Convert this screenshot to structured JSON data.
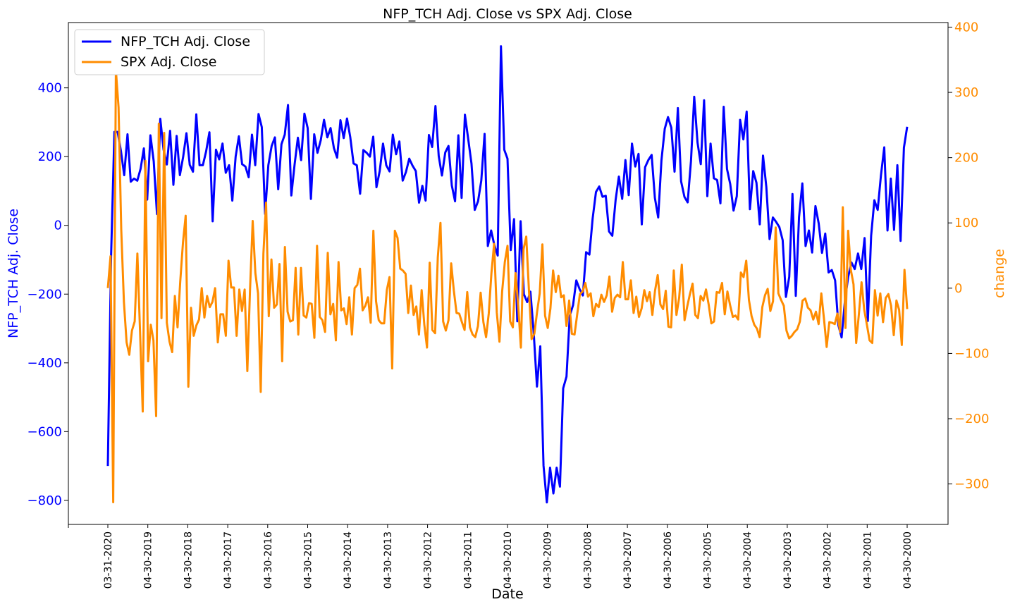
{
  "chart_data": {
    "type": "line",
    "title": "NFP_TCH Adj. Close vs SPX Adj. Close",
    "xlabel": "Date",
    "ylabel_left": "NFP_TCH Adj. Close",
    "ylabel_right": "change",
    "x_tick_labels": [
      "03-31-2020",
      "04-30-2019",
      "04-30-2018",
      "04-30-2017",
      "04-30-2016",
      "04-30-2015",
      "04-30-2014",
      "04-30-2013",
      "04-30-2012",
      "04-30-2011",
      "04-30-2010",
      "04-30-2009",
      "04-30-2008",
      "04-30-2007",
      "04-30-2006",
      "04-30-2005",
      "04-30-2004",
      "04-30-2003",
      "04-30-2002",
      "04-30-2001",
      "04-30-2000"
    ],
    "ylim_left": [
      -870,
      590
    ],
    "ylim_right": [
      -362,
      407
    ],
    "yticks_left": [
      -800,
      -600,
      -400,
      -200,
      0,
      200,
      400
    ],
    "yticks_right": [
      -300,
      -200,
      -100,
      0,
      100,
      200,
      300,
      400
    ],
    "legend": "top-left",
    "grid": false,
    "colors": {
      "nfp": "#0000ff",
      "spx": "#ff8c00"
    },
    "series": [
      {
        "name": "NFP_TCH Adj. Close",
        "axis": "left",
        "values": [
          -700,
          -90,
          272,
          272,
          216,
          146,
          265,
          127,
          136,
          130,
          165,
          224,
          75,
          262,
          186,
          33,
          310,
          221,
          177,
          275,
          118,
          260,
          146,
          200,
          268,
          176,
          156,
          323,
          175,
          175,
          215,
          271,
          12,
          220,
          192,
          238,
          153,
          175,
          72,
          200,
          259,
          178,
          171,
          140,
          264,
          175,
          324,
          286,
          33,
          175,
          231,
          256,
          105,
          236,
          264,
          350,
          87,
          176,
          255,
          190,
          325,
          283,
          77,
          265,
          211,
          248,
          307,
          256,
          283,
          225,
          197,
          306,
          254,
          311,
          257,
          180,
          175,
          92,
          219,
          211,
          200,
          258,
          111,
          158,
          238,
          175,
          157,
          264,
          207,
          244,
          130,
          155,
          194,
          174,
          158,
          66,
          115,
          72,
          263,
          228,
          347,
          202,
          145,
          212,
          231,
          116,
          70,
          262,
          80,
          322,
          252,
          180,
          45,
          70,
          130,
          266,
          -60,
          -15,
          -58,
          -88,
          521,
          220,
          194,
          -72,
          18,
          -279,
          12,
          -200,
          -223,
          -193,
          -313,
          -469,
          -352,
          -699,
          -806,
          -705,
          -780,
          -705,
          -760,
          -474,
          -440,
          -263,
          -232,
          -160,
          -185,
          -204,
          -78,
          -85,
          20,
          97,
          113,
          83,
          86,
          -18,
          -30,
          74,
          142,
          77,
          190,
          88,
          238,
          171,
          208,
          3,
          169,
          190,
          205,
          80,
          23,
          189,
          281,
          315,
          284,
          156,
          341,
          128,
          83,
          67,
          187,
          374,
          241,
          178,
          364,
          85,
          238,
          137,
          132,
          64,
          345,
          164,
          120,
          43,
          85,
          307,
          250,
          331,
          47,
          158,
          124,
          3,
          203,
          112,
          -40,
          23,
          10,
          -5,
          -43,
          -208,
          -150,
          91,
          -205,
          24,
          122,
          -60,
          -15,
          -79,
          56,
          6,
          -80,
          -24,
          -137,
          -130,
          -160,
          -290,
          -326,
          -220,
          -150,
          -108,
          -127,
          -82,
          -127,
          -37,
          -278,
          -30,
          73,
          45,
          145,
          227,
          -15,
          136,
          -13,
          175,
          -45,
          226,
          287
        ]
      },
      {
        "name": "SPX Adj. Close",
        "axis": "left",
        "values": [
          -180,
          -110,
          -805,
          520,
          250,
          -80,
          -185,
          -340,
          -370,
          -305,
          -280,
          -75,
          -320,
          -540,
          -115,
          -395,
          -275,
          -335,
          -555,
          -90,
          -270,
          -15,
          -190,
          -340,
          -365,
          -205,
          -290,
          -225,
          -40,
          10,
          -455,
          -230,
          -310,
          -285,
          -265,
          -185,
          -250,
          -200,
          -230,
          -210,
          -180,
          -340,
          -255,
          -255,
          -310,
          -100,
          -180,
          -180,
          -310,
          -185,
          -240,
          -180,
          -425,
          -190,
          0,
          -115,
          -185,
          -485,
          -80,
          10,
          -255,
          -95,
          -220,
          -210,
          -110,
          -390,
          -60,
          -170,
          -270,
          -260,
          -125,
          -310,
          -125,
          -245,
          -250,
          -205,
          -210,
          -325,
          -55,
          -260,
          -270,
          -305,
          -80,
          -240,
          -210,
          -330,
          -120,
          -245,
          -240,
          -285,
          -210,
          -310,
          -195,
          -180,
          -125,
          -245,
          -230,
          -210,
          -280,
          -165,
          -25,
          -150,
          -280,
          -290,
          -290,
          -200,
          -160,
          -410,
          -15,
          -35,
          -125,
          -130,
          -140,
          -250,
          -180,
          -255,
          -230,
          -310,
          -200,
          -290,
          -330,
          -120,
          -265,
          -315,
          -120,
          -50,
          -215,
          -325,
          -290,
          -100,
          -165,
          -240,
          -315,
          -190,
          -250,
          -245,
          -300,
          -220,
          -330,
          -310,
          -215,
          -265,
          -320,
          -285,
          -5,
          -15,
          -215,
          -315,
          -200,
          -120,
          -160,
          -240,
          -100,
          -335,
          -195,
          -50,
          -305,
          -250,
          -100,
          -205,
          -275,
          -130,
          -80,
          -170,
          -240,
          -310,
          -210,
          -50,
          -265,
          -275,
          -210,
          -170,
          -135,
          -200,
          -320,
          -240,
          -235,
          -210,
          -255,
          -200,
          -210,
          -200,
          -230,
          -225,
          -140,
          -225,
          -235,
          -240,
          -220,
          -265,
          -200,
          -225,
          -280,
          -240,
          -260,
          -200,
          -290,
          -285,
          -165,
          -225,
          -200,
          -130,
          -265,
          -280,
          -210,
          -170,
          -285,
          -295,
          -215,
          -195,
          -160,
          -215,
          -220,
          -230,
          -275,
          -200,
          -275,
          -255,
          -265,
          -190,
          -225,
          -165,
          -290,
          -240,
          -230,
          -220,
          -265,
          -185,
          -165,
          -125,
          -160,
          -185,
          -275,
          -60,
          -145,
          -205,
          -235,
          -250,
          -230,
          -120,
          -140,
          -290,
          -300,
          -155,
          -185,
          -200,
          -250,
          -165,
          -245,
          -285,
          -275,
          -245,
          -280,
          -300,
          -320,
          -340,
          -395,
          -400,
          -365,
          -440,
          -330,
          -305,
          -345,
          -225,
          -235,
          -195,
          -165,
          -120,
          -100,
          -60,
          -120,
          -60,
          -190,
          -155,
          -120,
          -110,
          -150,
          -240,
          -180,
          -230,
          -170,
          -195,
          -225,
          -210,
          -150,
          -215,
          -265,
          -275,
          -130,
          -110,
          -215,
          -240
        ]
      }
    ],
    "spx_values": [
      0,
      49,
      -328,
      334,
      277,
      90,
      -21,
      -83,
      -102,
      -65,
      -51,
      53,
      -67,
      -189,
      195,
      -112,
      -56,
      -80,
      -196,
      252,
      -46,
      238,
      -53,
      -82,
      -98,
      -12,
      -60,
      10,
      70,
      111,
      -151,
      -30,
      -73,
      -57,
      -48,
      0,
      -45,
      -12,
      -29,
      -21,
      0,
      -83,
      -40,
      -40,
      -73,
      42,
      1,
      1,
      -73,
      -2,
      -35,
      -2,
      -127,
      -3,
      103,
      23,
      -8,
      -159,
      53,
      131,
      -43,
      44,
      -30,
      -25,
      37,
      -112,
      63,
      -36,
      -51,
      -49,
      31,
      -71,
      31,
      -42,
      -45,
      -23,
      -24,
      -76,
      65,
      -44,
      -49,
      -67,
      54,
      -40,
      -24,
      -80,
      40,
      -34,
      -31,
      -55,
      -14,
      -71,
      0,
      5,
      30,
      -34,
      -27,
      -14,
      -53,
      88,
      -20,
      -49,
      -54,
      -54,
      -3,
      17,
      -123,
      88,
      77,
      30,
      27,
      22,
      -38,
      4,
      -41,
      -28,
      -71,
      -3,
      -56,
      -91,
      39,
      -64,
      -69,
      47,
      100,
      -51,
      -65,
      -49,
      38,
      -4,
      -38,
      -39,
      -52,
      -64,
      -6,
      -60,
      -71,
      -75,
      -58,
      -7,
      -52,
      -75,
      -39,
      23,
      68,
      -37,
      -82,
      -5,
      40,
      65,
      -51,
      -60,
      23,
      -27,
      -91,
      60,
      79,
      -3,
      -78,
      -70,
      -37,
      -8,
      67,
      -42,
      -61,
      -31,
      27,
      -6,
      19,
      -14,
      -11,
      -58,
      -19,
      -70,
      -71,
      -40,
      -9,
      -5,
      8,
      -13,
      -8,
      -43,
      -24,
      -29,
      -10,
      -21,
      -11,
      18,
      -36,
      -15,
      -10,
      -14,
      40,
      -17,
      -17,
      12,
      -38,
      -13,
      -44,
      -31,
      -3,
      -20,
      -6,
      -41,
      -4,
      20,
      -25,
      -32,
      -4,
      -59,
      -60,
      27,
      -41,
      -15,
      36,
      -49,
      -28,
      -9,
      7,
      -41,
      -46,
      -12,
      -19,
      -2,
      -25,
      -54,
      -51,
      -6,
      -7,
      8,
      -40,
      -5,
      -26,
      -44,
      -42,
      -48,
      24,
      17,
      42,
      -18,
      -43,
      -56,
      -62,
      -75,
      -29,
      -11,
      -1,
      -35,
      -20,
      93,
      -8,
      -18,
      -27,
      -65,
      -77,
      -73,
      -67,
      -63,
      -51,
      -19,
      -16,
      -30,
      -34,
      -48,
      -36,
      -55,
      -8,
      -47,
      -90,
      -52,
      -53,
      -55,
      -39,
      -67,
      124,
      -61,
      88,
      28,
      6,
      -84,
      -40,
      9,
      -33,
      -56,
      -80,
      -84,
      -3,
      -42,
      -8,
      -52,
      -15,
      -9,
      -27,
      -72,
      -19,
      -33,
      -87,
      28,
      -32
    ]
  }
}
